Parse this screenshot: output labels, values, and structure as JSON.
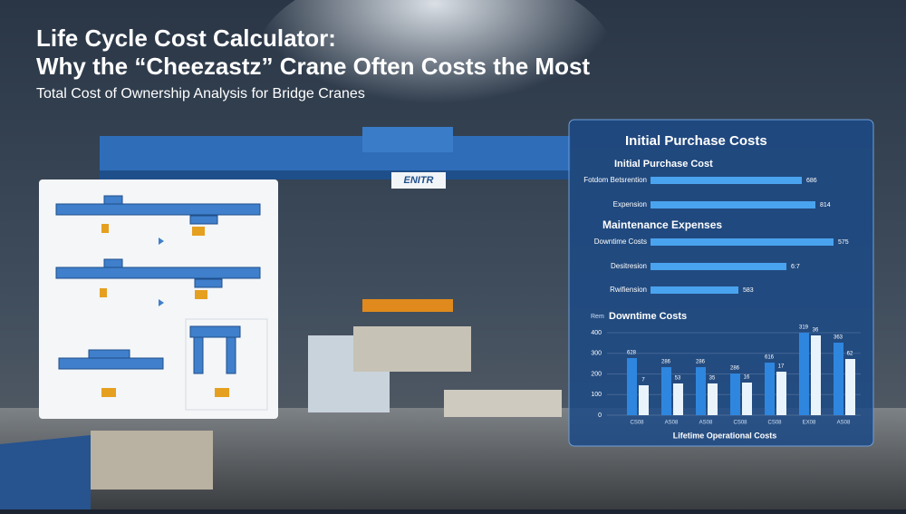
{
  "header": {
    "title_line1": "Life Cycle Cost Calculator:",
    "title_line2": "Why the “Cheezastz” Crane Often Costs the Most",
    "subtitle": "Total Cost of Ownership Analysis for Bridge Cranes"
  },
  "crane_sign": "ENITR",
  "panel": {
    "title": "Initial Purchase Costs",
    "sections": [
      {
        "heading": "Initial Purchase Cost",
        "bars": [
          {
            "label": "Fotdom Betsrention",
            "value": "686"
          },
          {
            "label": "Expension",
            "value": "814"
          }
        ]
      },
      {
        "heading": "Maintenance Expenses",
        "bars": [
          {
            "label": "Downtime Costs",
            "value": "575"
          },
          {
            "label": "Desitresion",
            "value": "6:7"
          },
          {
            "label": "Rwifiension",
            "value": "583"
          }
        ]
      }
    ],
    "chart": {
      "title": "Downtime Costs",
      "axis_label": "Rem",
      "yticks": [
        "400",
        "300",
        "200",
        "100",
        "0"
      ],
      "groups": [
        {
          "label": "CS08",
          "a": "628",
          "b": "7"
        },
        {
          "label": "AS08",
          "a": "286",
          "b": "53"
        },
        {
          "label": "AS08",
          "a": "286",
          "b": "35"
        },
        {
          "label": "CS08",
          "a": "286",
          "b": "16"
        },
        {
          "label": "CS08",
          "a": "616",
          "b": "17"
        },
        {
          "label": "EX08",
          "a": "319",
          "b": "36"
        },
        {
          "label": "AS08",
          "a": "363",
          "b": "62"
        }
      ],
      "caption": "Lifetime Operational Costs"
    }
  }
}
